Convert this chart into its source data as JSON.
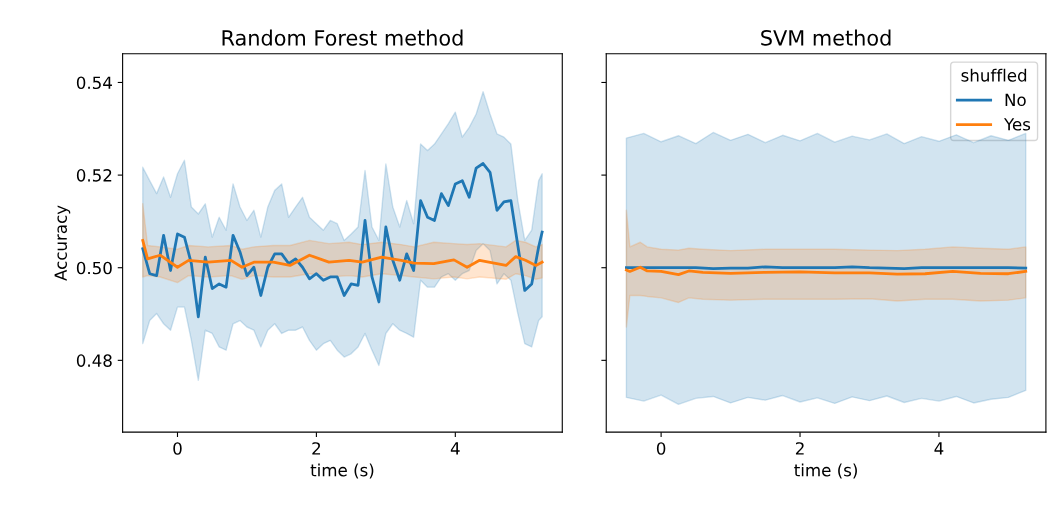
{
  "chart_data": [
    {
      "type": "line",
      "title": "Random Forest method",
      "xlabel": "time (s)",
      "ylabel": "Accuracy",
      "xlim": [
        -0.79,
        5.54
      ],
      "xticks": [
        0,
        2,
        4
      ],
      "ylim": [
        0.4645,
        0.5462
      ],
      "yticks": [
        {
          "value": 0.48,
          "label": "0.48"
        },
        {
          "value": 0.5,
          "label": "0.50"
        },
        {
          "value": 0.52,
          "label": "0.52"
        },
        {
          "value": 0.54,
          "label": "0.54"
        }
      ],
      "series": [
        {
          "color": "#1f77b4",
          "x": [
            -0.5,
            -0.4,
            -0.3,
            -0.2,
            -0.1,
            0.0,
            0.1,
            0.2,
            0.3,
            0.4,
            0.5,
            0.6,
            0.7,
            0.8,
            0.9,
            1.0,
            1.1,
            1.2,
            1.3,
            1.4,
            1.5,
            1.6,
            1.7,
            1.8,
            1.9,
            2.0,
            2.1,
            2.2,
            2.3,
            2.4,
            2.5,
            2.6,
            2.7,
            2.8,
            2.9,
            3.0,
            3.1,
            3.2,
            3.3,
            3.4,
            3.5,
            3.6,
            3.7,
            3.8,
            3.9,
            4.0,
            4.1,
            4.2,
            4.3,
            4.4,
            4.5,
            4.6,
            4.7,
            4.8,
            4.9,
            5.0,
            5.1,
            5.2,
            5.25
          ],
          "values": [
            0.5041,
            0.4987,
            0.4983,
            0.507,
            0.4994,
            0.5073,
            0.5066,
            0.5009,
            0.4894,
            0.5023,
            0.4955,
            0.4965,
            0.4958,
            0.507,
            0.5034,
            0.4983,
            0.5001,
            0.494,
            0.5001,
            0.503,
            0.503,
            0.5009,
            0.5019,
            0.5001,
            0.4976,
            0.4987,
            0.4973,
            0.498,
            0.498,
            0.494,
            0.4965,
            0.4962,
            0.5102,
            0.498,
            0.4926,
            0.5088,
            0.5016,
            0.4973,
            0.503,
            0.4994,
            0.5145,
            0.5109,
            0.5102,
            0.516,
            0.5134,
            0.5181,
            0.5188,
            0.5152,
            0.5215,
            0.5225,
            0.5206,
            0.5124,
            0.5142,
            0.5145,
            0.5048,
            0.4951,
            0.4965,
            0.5045,
            0.5077
          ],
          "upper": [
            0.5217,
            0.5188,
            0.516,
            0.5196,
            0.5152,
            0.5203,
            0.5232,
            0.5131,
            0.5116,
            0.5138,
            0.5066,
            0.5109,
            0.5081,
            0.5181,
            0.5131,
            0.5102,
            0.5124,
            0.5066,
            0.5131,
            0.5167,
            0.5181,
            0.5109,
            0.5131,
            0.5152,
            0.5109,
            0.5095,
            0.5081,
            0.5102,
            0.5095,
            0.5059,
            0.5073,
            0.5088,
            0.521,
            0.5088,
            0.5059,
            0.5224,
            0.5131,
            0.5088,
            0.5145,
            0.5095,
            0.5267,
            0.5253,
            0.5267,
            0.5289,
            0.5311,
            0.5336,
            0.5282,
            0.5303,
            0.5332,
            0.538,
            0.5332,
            0.5289,
            0.5282,
            0.5267,
            0.5145,
            0.5059,
            0.5081,
            0.5188,
            0.5203
          ],
          "lower": [
            0.4836,
            0.4886,
            0.4901,
            0.4879,
            0.4865,
            0.4915,
            0.4915,
            0.4843,
            0.4757,
            0.4865,
            0.4858,
            0.4829,
            0.4822,
            0.4879,
            0.4886,
            0.4872,
            0.4865,
            0.4829,
            0.4865,
            0.4879,
            0.4858,
            0.4865,
            0.4865,
            0.4872,
            0.4843,
            0.4822,
            0.4836,
            0.4843,
            0.4822,
            0.4807,
            0.4814,
            0.4829,
            0.4858,
            0.4822,
            0.4789,
            0.4858,
            0.4879,
            0.4865,
            0.4858,
            0.485,
            0.4973,
            0.4958,
            0.4958,
            0.498,
            0.4987,
            0.4973,
            0.4987,
            0.4994,
            0.5037,
            0.5052,
            0.5037,
            0.4965,
            0.4987,
            0.4973,
            0.4901,
            0.4836,
            0.4829,
            0.4886,
            0.4894
          ]
        },
        {
          "color": "#ff7f0e",
          "x": [
            -0.5,
            -0.43,
            -0.25,
            0.0,
            0.16,
            0.44,
            0.77,
            0.93,
            1.1,
            1.38,
            1.62,
            1.9,
            2.18,
            2.47,
            2.66,
            2.94,
            3.22,
            3.41,
            3.69,
            3.98,
            4.17,
            4.35,
            4.73,
            4.87,
            5.01,
            5.16,
            5.25
          ],
          "values": [
            0.5059,
            0.5019,
            0.5027,
            0.5001,
            0.5016,
            0.5012,
            0.5016,
            0.5001,
            0.5012,
            0.5012,
            0.5005,
            0.5027,
            0.5012,
            0.5016,
            0.5012,
            0.5023,
            0.5016,
            0.501,
            0.5009,
            0.5017,
            0.5001,
            0.5016,
            0.5005,
            0.5024,
            0.5016,
            0.5005,
            0.5012
          ],
          "upper": [
            0.5138,
            0.5048,
            0.5045,
            0.504,
            0.5048,
            0.5045,
            0.5048,
            0.504,
            0.5045,
            0.5048,
            0.5048,
            0.5059,
            0.5052,
            0.5055,
            0.505,
            0.5055,
            0.505,
            0.5045,
            0.5055,
            0.5052,
            0.505,
            0.5052,
            0.5045,
            0.5059,
            0.5055,
            0.5045,
            0.505
          ],
          "lower": [
            0.498,
            0.4983,
            0.498,
            0.4968,
            0.4983,
            0.498,
            0.4983,
            0.4975,
            0.4983,
            0.498,
            0.498,
            0.4987,
            0.498,
            0.4983,
            0.498,
            0.4987,
            0.4983,
            0.498,
            0.4976,
            0.498,
            0.4976,
            0.498,
            0.4975,
            0.4987,
            0.4983,
            0.4975,
            0.4978
          ]
        }
      ]
    },
    {
      "type": "line",
      "title": "SVM method",
      "xlabel": "time (s)",
      "tick_labels": "x",
      "legend": "top right",
      "legend_title": "shuffled",
      "xlim": [
        -0.79,
        5.54
      ],
      "xticks": [
        0,
        2,
        4
      ],
      "ylim": [
        0.4645,
        0.5462
      ],
      "yticks": [
        0.48,
        0.5,
        0.52,
        0.54
      ],
      "series": [
        {
          "name": "No",
          "color": "#1f77b4",
          "x": [
            -0.5,
            -0.25,
            0,
            0.25,
            0.5,
            0.75,
            1.0,
            1.25,
            1.5,
            1.75,
            2.0,
            2.25,
            2.5,
            2.75,
            3.0,
            3.25,
            3.5,
            3.75,
            4.0,
            4.25,
            4.5,
            4.75,
            5.0,
            5.25
          ],
          "values": [
            0.5,
            0.5,
            0.5,
            0.5,
            0.5,
            0.4998,
            0.4999,
            0.4999,
            0.5002,
            0.5,
            0.5,
            0.5,
            0.5,
            0.5002,
            0.5,
            0.4999,
            0.4998,
            0.5,
            0.5,
            0.5,
            0.5,
            0.5,
            0.5,
            0.4999
          ],
          "upper": [
            0.528,
            0.529,
            0.5272,
            0.5285,
            0.5268,
            0.5292,
            0.5275,
            0.5288,
            0.527,
            0.5286,
            0.5274,
            0.529,
            0.5271,
            0.5284,
            0.5276,
            0.5289,
            0.5268,
            0.5283,
            0.5273,
            0.5287,
            0.527,
            0.5285,
            0.5275,
            0.529
          ],
          "lower": [
            0.472,
            0.4712,
            0.4725,
            0.4705,
            0.4718,
            0.4722,
            0.4708,
            0.472,
            0.4714,
            0.4724,
            0.471,
            0.4719,
            0.4707,
            0.4721,
            0.4713,
            0.4723,
            0.4709,
            0.4718,
            0.4712,
            0.4722,
            0.4708,
            0.4716,
            0.472,
            0.4735
          ]
        },
        {
          "name": "Yes",
          "color": "#ff7f0e",
          "x": [
            -0.5,
            -0.45,
            -0.3,
            -0.2,
            0,
            0.25,
            0.4,
            0.6,
            1.0,
            1.5,
            2.0,
            2.5,
            3.0,
            3.4,
            3.8,
            4.2,
            4.6,
            5.0,
            5.25
          ],
          "values": [
            0.4995,
            0.4992,
            0.5001,
            0.4993,
            0.4992,
            0.4985,
            0.4993,
            0.499,
            0.4988,
            0.499,
            0.4991,
            0.4989,
            0.4989,
            0.4986,
            0.4987,
            0.4992,
            0.4988,
            0.4987,
            0.4992
          ],
          "upper": [
            0.5124,
            0.5045,
            0.5055,
            0.5045,
            0.504,
            0.5038,
            0.5042,
            0.504,
            0.5037,
            0.504,
            0.504,
            0.504,
            0.5038,
            0.5037,
            0.504,
            0.5045,
            0.5042,
            0.504,
            0.5045
          ],
          "lower": [
            0.4872,
            0.494,
            0.494,
            0.4938,
            0.4935,
            0.4925,
            0.4935,
            0.4932,
            0.493,
            0.4932,
            0.4932,
            0.4932,
            0.4933,
            0.4928,
            0.4932,
            0.4932,
            0.4928,
            0.493,
            0.4935
          ]
        }
      ]
    }
  ]
}
